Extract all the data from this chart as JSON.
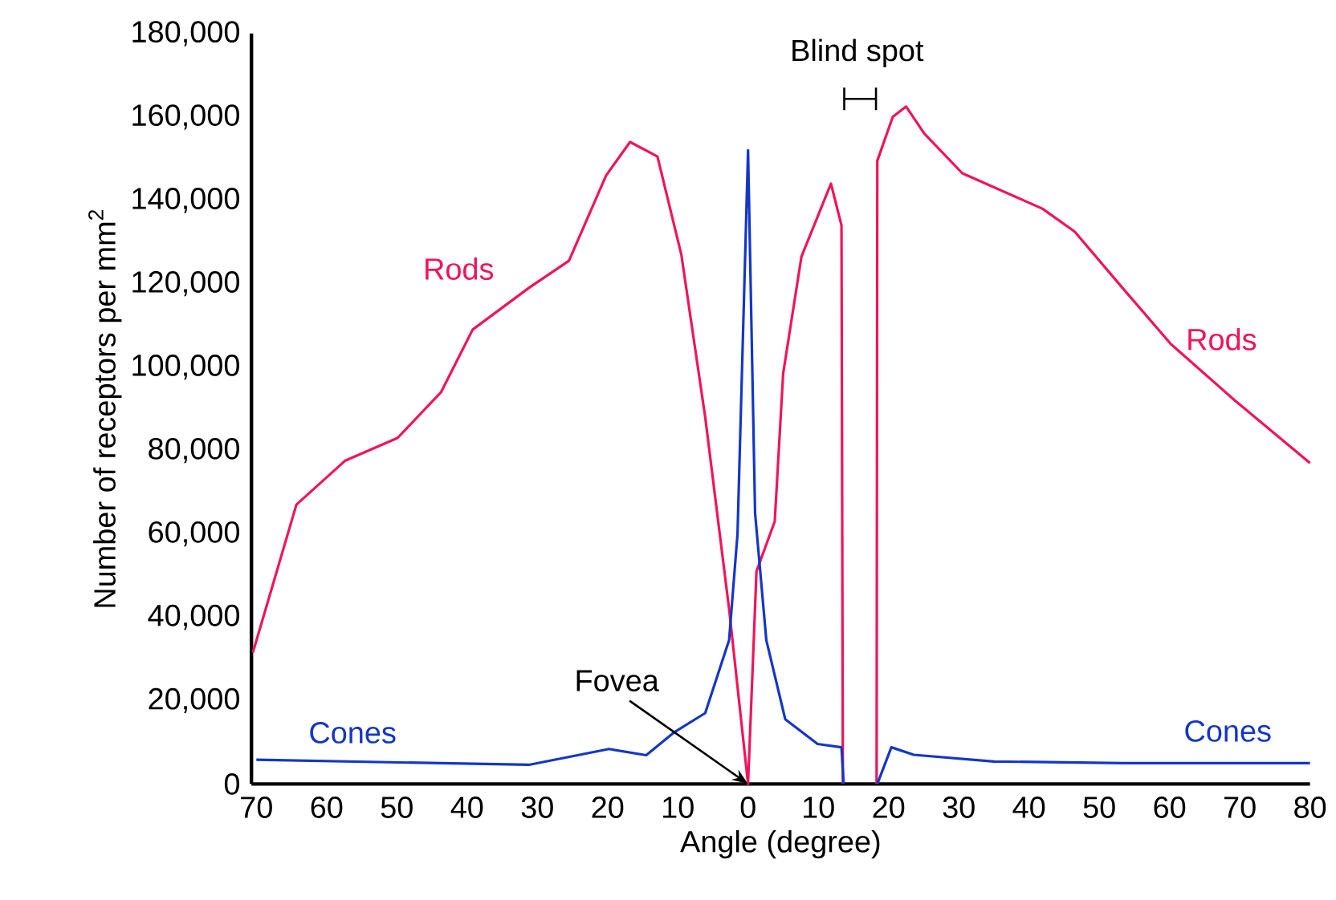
{
  "chart_data": {
    "type": "line",
    "xlabel": "Angle (degree)",
    "ylabel": "Number of receptors per mm$^{2}$",
    "series": [
      {
        "name": "Rods",
        "color": "#f0145a",
        "x": [
          -70.5,
          -64.3,
          -57.4,
          -49.9,
          -43.7,
          -39.2,
          -31.2,
          -25.5,
          -20.2,
          -16.8,
          -12.9,
          -9.5,
          -6.1,
          -2.7,
          0,
          1.2,
          3.8,
          5.0,
          7.6,
          11.8,
          13.3,
          13.5,
          16,
          18.3,
          18.4,
          20.6,
          22.5,
          25.1,
          30.5,
          41.9,
          46.5,
          53.3,
          60.2,
          69.3,
          80
        ],
        "values": [
          31500,
          67000,
          77500,
          83000,
          94000,
          109000,
          119000,
          125500,
          146000,
          154000,
          150500,
          127000,
          88000,
          42000,
          0,
          51000,
          63000,
          98500,
          126500,
          144000,
          134000,
          0,
          null,
          0,
          149500,
          160000,
          162500,
          156000,
          146500,
          138000,
          132500,
          119000,
          105500,
          92000,
          77000
        ]
      },
      {
        "name": "Cones",
        "color": "#1436c8",
        "x": [
          -70,
          -31.2,
          -19.8,
          -14.5,
          -10.6,
          -6.1,
          -2.7,
          -1.5,
          0,
          1,
          2.6,
          5.3,
          9.9,
          13.3,
          13.6,
          16,
          18.4,
          20.4,
          23.6,
          35,
          53.3,
          80
        ],
        "values": [
          5800,
          4600,
          8400,
          6900,
          12300,
          17000,
          34500,
          60000,
          152000,
          65000,
          34500,
          15500,
          9600,
          8800,
          0,
          null,
          0,
          8800,
          7000,
          5400,
          5000,
          5000
        ]
      }
    ],
    "xlim": [
      -70.7,
      80
    ],
    "xticks": [
      {
        "value": -70,
        "label": "70"
      },
      {
        "value": -60,
        "label": "60"
      },
      {
        "value": -50,
        "label": "50"
      },
      {
        "value": -40,
        "label": "40"
      },
      {
        "value": -30,
        "label": "30"
      },
      {
        "value": -20,
        "label": "20"
      },
      {
        "value": -10,
        "label": "10"
      },
      0,
      10,
      20,
      30,
      40,
      50,
      60,
      70,
      80
    ],
    "ylim": [
      0,
      180000
    ],
    "yticks": [
      {
        "value": 0,
        "label": "0"
      },
      {
        "value": 20000,
        "label": "20,000"
      },
      {
        "value": 40000,
        "label": "40,000"
      },
      {
        "value": 60000,
        "label": "60,000"
      },
      {
        "value": 80000,
        "label": "80,000"
      },
      {
        "value": 100000,
        "label": "100,000"
      },
      {
        "value": 120000,
        "label": "120,000"
      },
      {
        "value": 140000,
        "label": "140,000"
      },
      {
        "value": 160000,
        "label": "160,000"
      },
      {
        "value": 180000,
        "label": "180,000"
      }
    ],
    "annotations": [
      {
        "text": "Fovea",
        "x": 0,
        "y": 0
      },
      "Blind spot"
    ],
    "grid": false,
    "legend": false,
    "marker": "none",
    "line_style": "solid"
  }
}
